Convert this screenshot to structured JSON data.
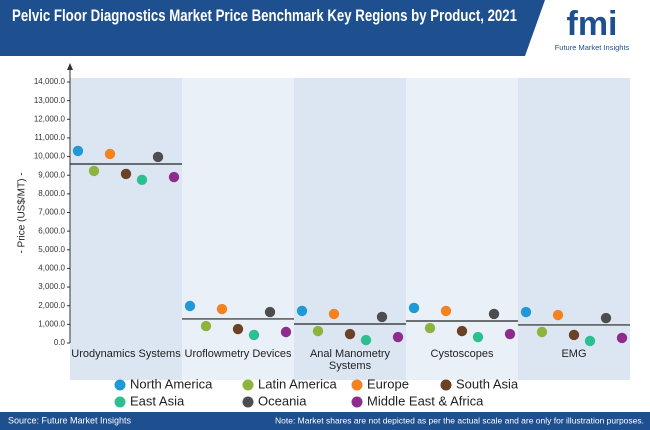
{
  "header": {
    "title": "Pelvic Floor Diagnostics Market Price Benchmark Key Regions by Product, 2021",
    "logo": "fmi",
    "logo_subtitle": "Future Market Insights"
  },
  "chart_data": {
    "type": "dot",
    "ylabel": "- Price (US$/MT) -",
    "categories": [
      "Urodynamics Systems",
      "Uroflowmetry Devices",
      "Anal Manometry Systems",
      "Cystoscopes",
      "EMG"
    ],
    "series": [
      {
        "name": "North America",
        "color": "#1f9ad6",
        "values": [
          10300,
          1985,
          1720,
          1880,
          1660
        ]
      },
      {
        "name": "Latin America",
        "color": "#8db43e",
        "values": [
          9230,
          910,
          640,
          800,
          590
        ]
      },
      {
        "name": "Europe",
        "color": "#f58220",
        "values": [
          10140,
          1820,
          1560,
          1720,
          1500
        ]
      },
      {
        "name": "South Asia",
        "color": "#6b4226",
        "values": [
          9070,
          750,
          480,
          640,
          430
        ]
      },
      {
        "name": "East Asia",
        "color": "#2ebf91",
        "values": [
          8750,
          430,
          160,
          320,
          110
        ]
      },
      {
        "name": "Oceania",
        "color": "#4d4d4d",
        "values": [
          9980,
          1660,
          1400,
          1560,
          1340
        ]
      },
      {
        "name": "Middle East & Africa",
        "color": "#8e2c8e",
        "values": [
          8900,
          590,
          320,
          480,
          270
        ]
      }
    ],
    "benchmark_lines": [
      9600,
      1290,
      1020,
      1180,
      970
    ],
    "ylim": [
      0,
      14000
    ],
    "yticks": [
      {
        "value": 0,
        "label": "0.0"
      },
      {
        "value": 1000,
        "label": "1,000.0"
      },
      {
        "value": 2000,
        "label": "2,000.0"
      },
      {
        "value": 3000,
        "label": "3,000.0"
      },
      {
        "value": 4000,
        "label": "4,000.0"
      },
      {
        "value": 5000,
        "label": "5,000.0"
      },
      {
        "value": 6000,
        "label": "6,000.0"
      },
      {
        "value": 7000,
        "label": "7,000.0"
      },
      {
        "value": 8000,
        "label": "8,000.0"
      },
      {
        "value": 9000,
        "label": "9,000.0"
      },
      {
        "value": 10000,
        "label": "10,000.0"
      },
      {
        "value": 11000,
        "label": "11,000.0"
      },
      {
        "value": 12000,
        "label": "12,000.0"
      },
      {
        "value": 13000,
        "label": "13,000.0"
      },
      {
        "value": 14000,
        "label": "14,000.0"
      }
    ],
    "legend": "bottom"
  },
  "footer": {
    "source": "Source: Future Market Insights",
    "note": "Note: Market shares are not depicted as per the actual scale and are only for illustration purposes."
  }
}
